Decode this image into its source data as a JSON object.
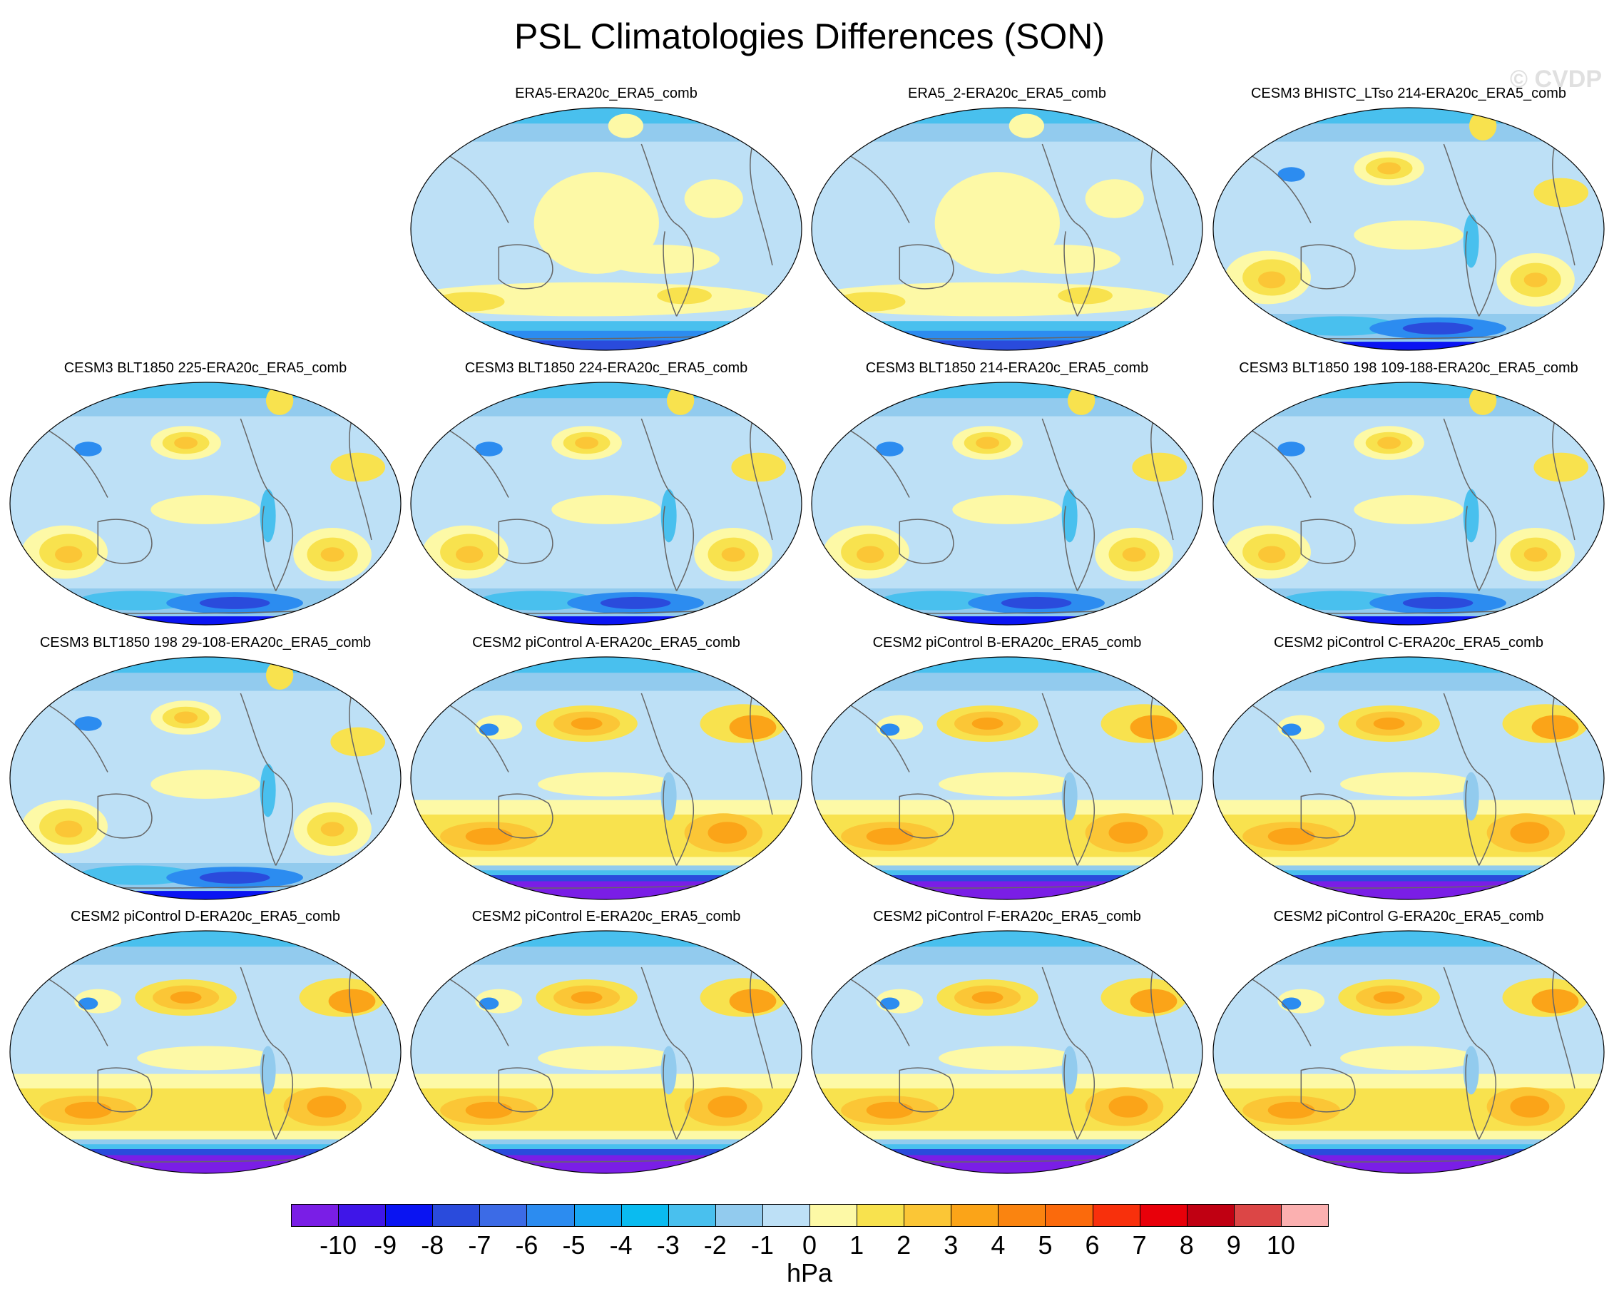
{
  "title": "PSL Climatologies Differences (SON)",
  "watermark": "© CVDP",
  "panels": [
    {
      "title": "ERA5-ERA20c_ERA5_comb",
      "style": "era"
    },
    {
      "title": "ERA5_2-ERA20c_ERA5_comb",
      "style": "era"
    },
    {
      "title": "CESM3 BHISTC_LTso 214-ERA20c_ERA5_comb",
      "style": "cesm3"
    },
    {
      "title": "CESM3 BLT1850 225-ERA20c_ERA5_comb",
      "style": "cesm3"
    },
    {
      "title": "CESM3 BLT1850 224-ERA20c_ERA5_comb",
      "style": "cesm3"
    },
    {
      "title": "CESM3 BLT1850 214-ERA20c_ERA5_comb",
      "style": "cesm3"
    },
    {
      "title": "CESM3 BLT1850 198 109-188-ERA20c_ERA5_comb",
      "style": "cesm3"
    },
    {
      "title": "CESM3 BLT1850 198 29-108-ERA20c_ERA5_comb",
      "style": "cesm3"
    },
    {
      "title": "CESM2 piControl A-ERA20c_ERA5_comb",
      "style": "cesm2"
    },
    {
      "title": "CESM2 piControl B-ERA20c_ERA5_comb",
      "style": "cesm2"
    },
    {
      "title": "CESM2 piControl C-ERA20c_ERA5_comb",
      "style": "cesm2"
    },
    {
      "title": "CESM2 piControl D-ERA20c_ERA5_comb",
      "style": "cesm2"
    },
    {
      "title": "CESM2 piControl E-ERA20c_ERA5_comb",
      "style": "cesm2"
    },
    {
      "title": "CESM2 piControl F-ERA20c_ERA5_comb",
      "style": "cesm2"
    },
    {
      "title": "CESM2 piControl G-ERA20c_ERA5_comb",
      "style": "cesm2"
    }
  ],
  "colorbar": {
    "units": "hPa",
    "tick_labels": [
      "-10",
      "-9",
      "-8",
      "-7",
      "-6",
      "-5",
      "-4",
      "-3",
      "-2",
      "-1",
      "0",
      "1",
      "2",
      "3",
      "4",
      "5",
      "6",
      "7",
      "8",
      "9",
      "10"
    ],
    "colors": [
      "#7a1ee6",
      "#3f16e8",
      "#0a14f2",
      "#2a4bdc",
      "#3c6be6",
      "#2c8cf0",
      "#17a6f2",
      "#0abbf0",
      "#49c0ee",
      "#92cbee",
      "#bde0f6",
      "#fdf9a6",
      "#f8e24e",
      "#fbc636",
      "#fba418",
      "#fa8410",
      "#fb6a0c",
      "#f8300c",
      "#e8000a",
      "#c00012",
      "#dc4646",
      "#fbb0b0"
    ]
  },
  "palette": {
    "bg_blue": "#bde0f6",
    "light_blue": "#92cbee",
    "mid_blue": "#49c0ee",
    "blue": "#2c8cf0",
    "dark_blue": "#2a4bdc",
    "deep_blue": "#0a14f2",
    "purple": "#7a1ee6",
    "pale_yellow": "#fdf9a6",
    "yellow": "#f8e24e",
    "gold": "#fbc636",
    "orange": "#fba418",
    "dark_orange": "#fa8410",
    "coast": "#666666"
  }
}
